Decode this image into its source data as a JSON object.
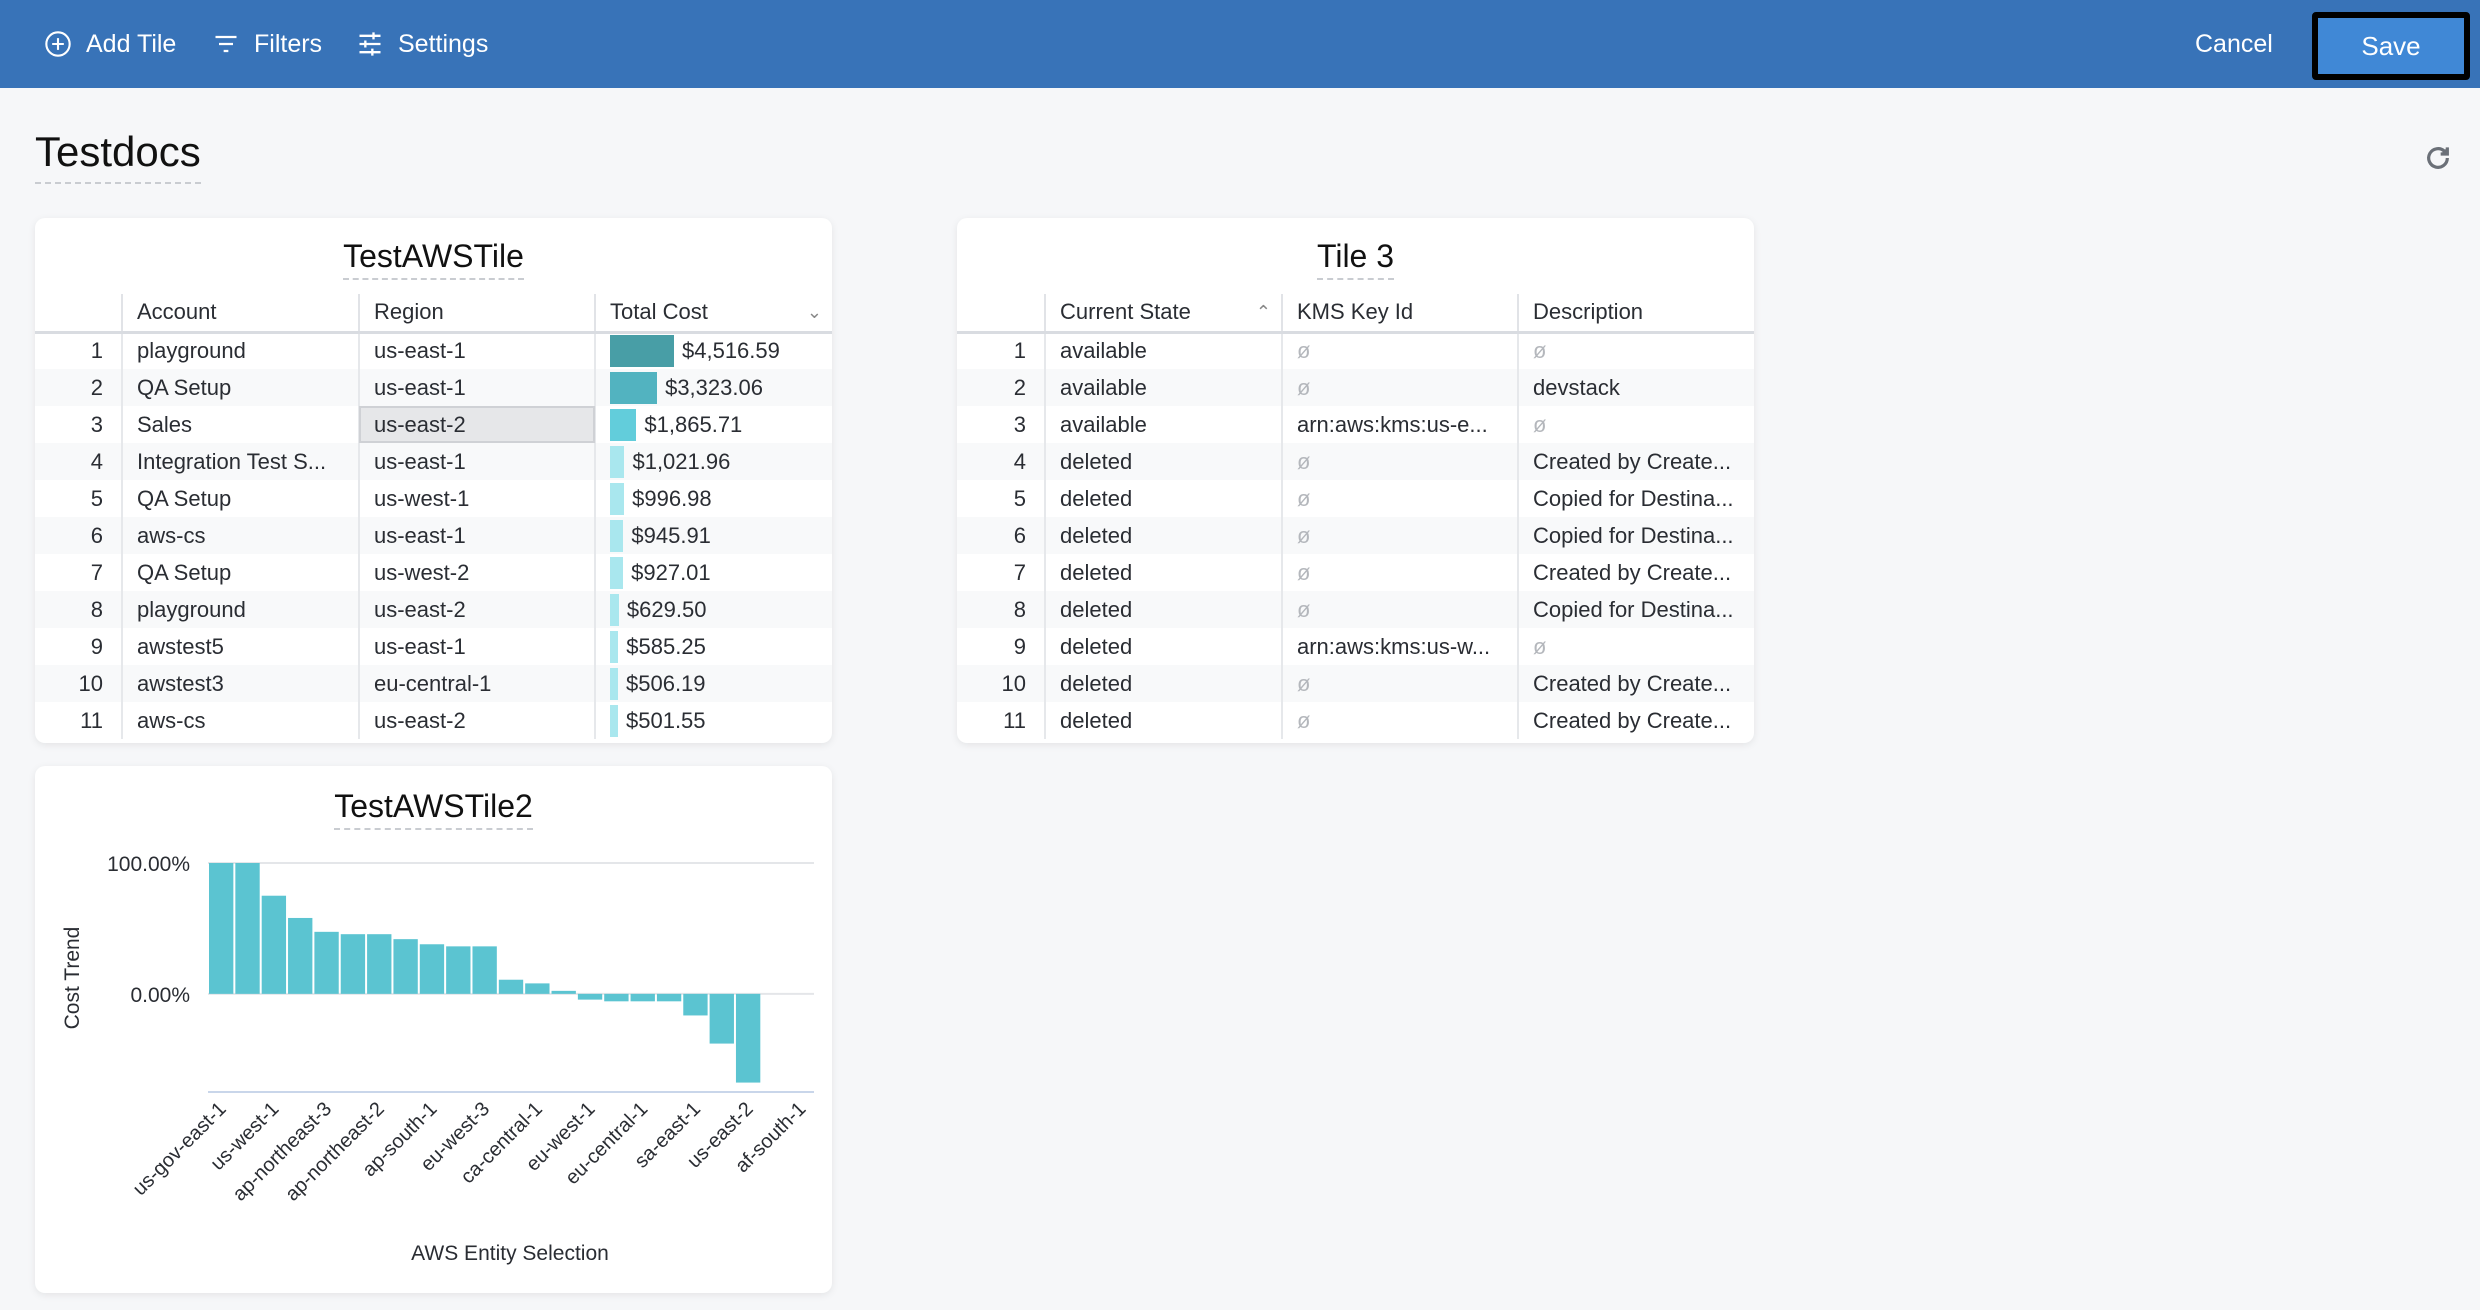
{
  "toolbar": {
    "add_tile": "Add Tile",
    "filters": "Filters",
    "settings": "Settings",
    "cancel": "Cancel",
    "save": "Save",
    "colors": {
      "bar": "#3873b8",
      "save": "#4088d6"
    }
  },
  "page": {
    "title": "Testdocs",
    "refresh_icon": "refresh-icon"
  },
  "tile1": {
    "title": "TestAWSTile",
    "columns": [
      "",
      "Account",
      "Region",
      "Total Cost"
    ],
    "sort_indicator": "chevron-down-icon",
    "rows": [
      {
        "n": "1",
        "account": "playground",
        "region": "us-east-1",
        "cost": "$4,516.59",
        "value": 4516.59
      },
      {
        "n": "2",
        "account": "QA Setup",
        "region": "us-east-1",
        "cost": "$3,323.06",
        "value": 3323.06
      },
      {
        "n": "3",
        "account": "Sales",
        "region": "us-east-2",
        "cost": "$1,865.71",
        "value": 1865.71
      },
      {
        "n": "4",
        "account": "Integration Test S...",
        "region": "us-east-1",
        "cost": "$1,021.96",
        "value": 1021.96
      },
      {
        "n": "5",
        "account": "QA Setup",
        "region": "us-west-1",
        "cost": "$996.98",
        "value": 996.98
      },
      {
        "n": "6",
        "account": "aws-cs",
        "region": "us-east-1",
        "cost": "$945.91",
        "value": 945.91
      },
      {
        "n": "7",
        "account": "QA Setup",
        "region": "us-west-2",
        "cost": "$927.01",
        "value": 927.01
      },
      {
        "n": "8",
        "account": "playground",
        "region": "us-east-2",
        "cost": "$629.50",
        "value": 629.5
      },
      {
        "n": "9",
        "account": "awstest5",
        "region": "us-east-1",
        "cost": "$585.25",
        "value": 585.25
      },
      {
        "n": "10",
        "account": "awstest3",
        "region": "eu-central-1",
        "cost": "$506.19",
        "value": 506.19
      },
      {
        "n": "11",
        "account": "aws-cs",
        "region": "us-east-2",
        "cost": "$501.55",
        "value": 501.55
      }
    ]
  },
  "tile3": {
    "title": "Tile 3",
    "columns": [
      "",
      "Current State",
      "KMS Key Id",
      "Description"
    ],
    "sort_indicator": "chevron-up-icon",
    "rows": [
      {
        "n": "1",
        "state": "available",
        "kms": "ø",
        "desc": "ø"
      },
      {
        "n": "2",
        "state": "available",
        "kms": "ø",
        "desc": "devstack"
      },
      {
        "n": "3",
        "state": "available",
        "kms": "arn:aws:kms:us-e...",
        "desc": "ø"
      },
      {
        "n": "4",
        "state": "deleted",
        "kms": "ø",
        "desc": "Created by Create..."
      },
      {
        "n": "5",
        "state": "deleted",
        "kms": "ø",
        "desc": "Copied for Destina..."
      },
      {
        "n": "6",
        "state": "deleted",
        "kms": "ø",
        "desc": "Copied for Destina..."
      },
      {
        "n": "7",
        "state": "deleted",
        "kms": "ø",
        "desc": "Created by Create..."
      },
      {
        "n": "8",
        "state": "deleted",
        "kms": "ø",
        "desc": "Copied for Destina..."
      },
      {
        "n": "9",
        "state": "deleted",
        "kms": "arn:aws:kms:us-w...",
        "desc": "ø"
      },
      {
        "n": "10",
        "state": "deleted",
        "kms": "ø",
        "desc": "Created by Create..."
      },
      {
        "n": "11",
        "state": "deleted",
        "kms": "ø",
        "desc": "Created by Create..."
      }
    ]
  },
  "chart_data": {
    "type": "bar",
    "title": "TestAWSTile2",
    "xlabel": "AWS Entity Selection",
    "ylabel": "Cost Trend",
    "yticks": [
      "100.00%",
      "0.00%"
    ],
    "ylim": [
      -75,
      100
    ],
    "grid": true,
    "color": "#5bc4d1",
    "categories": [
      "us-gov-east-1",
      "",
      "us-west-1",
      "",
      "ap-northeast-3",
      "",
      "ap-northeast-2",
      "",
      "ap-south-1",
      "",
      "eu-west-3",
      "",
      "ca-central-1",
      "",
      "eu-west-1",
      "",
      "eu-central-1",
      "",
      "sa-east-1",
      "",
      "us-east-2",
      "",
      "af-south-1"
    ],
    "values": [
      100,
      100,
      75,
      58,
      47.4,
      45.6,
      45.6,
      41.8,
      37.9,
      36.3,
      36.3,
      10.8,
      8,
      2.3,
      -4.4,
      -5.7,
      -5.7,
      -5.7,
      -16.5,
      -38,
      -67.8,
      0,
      0
    ]
  }
}
